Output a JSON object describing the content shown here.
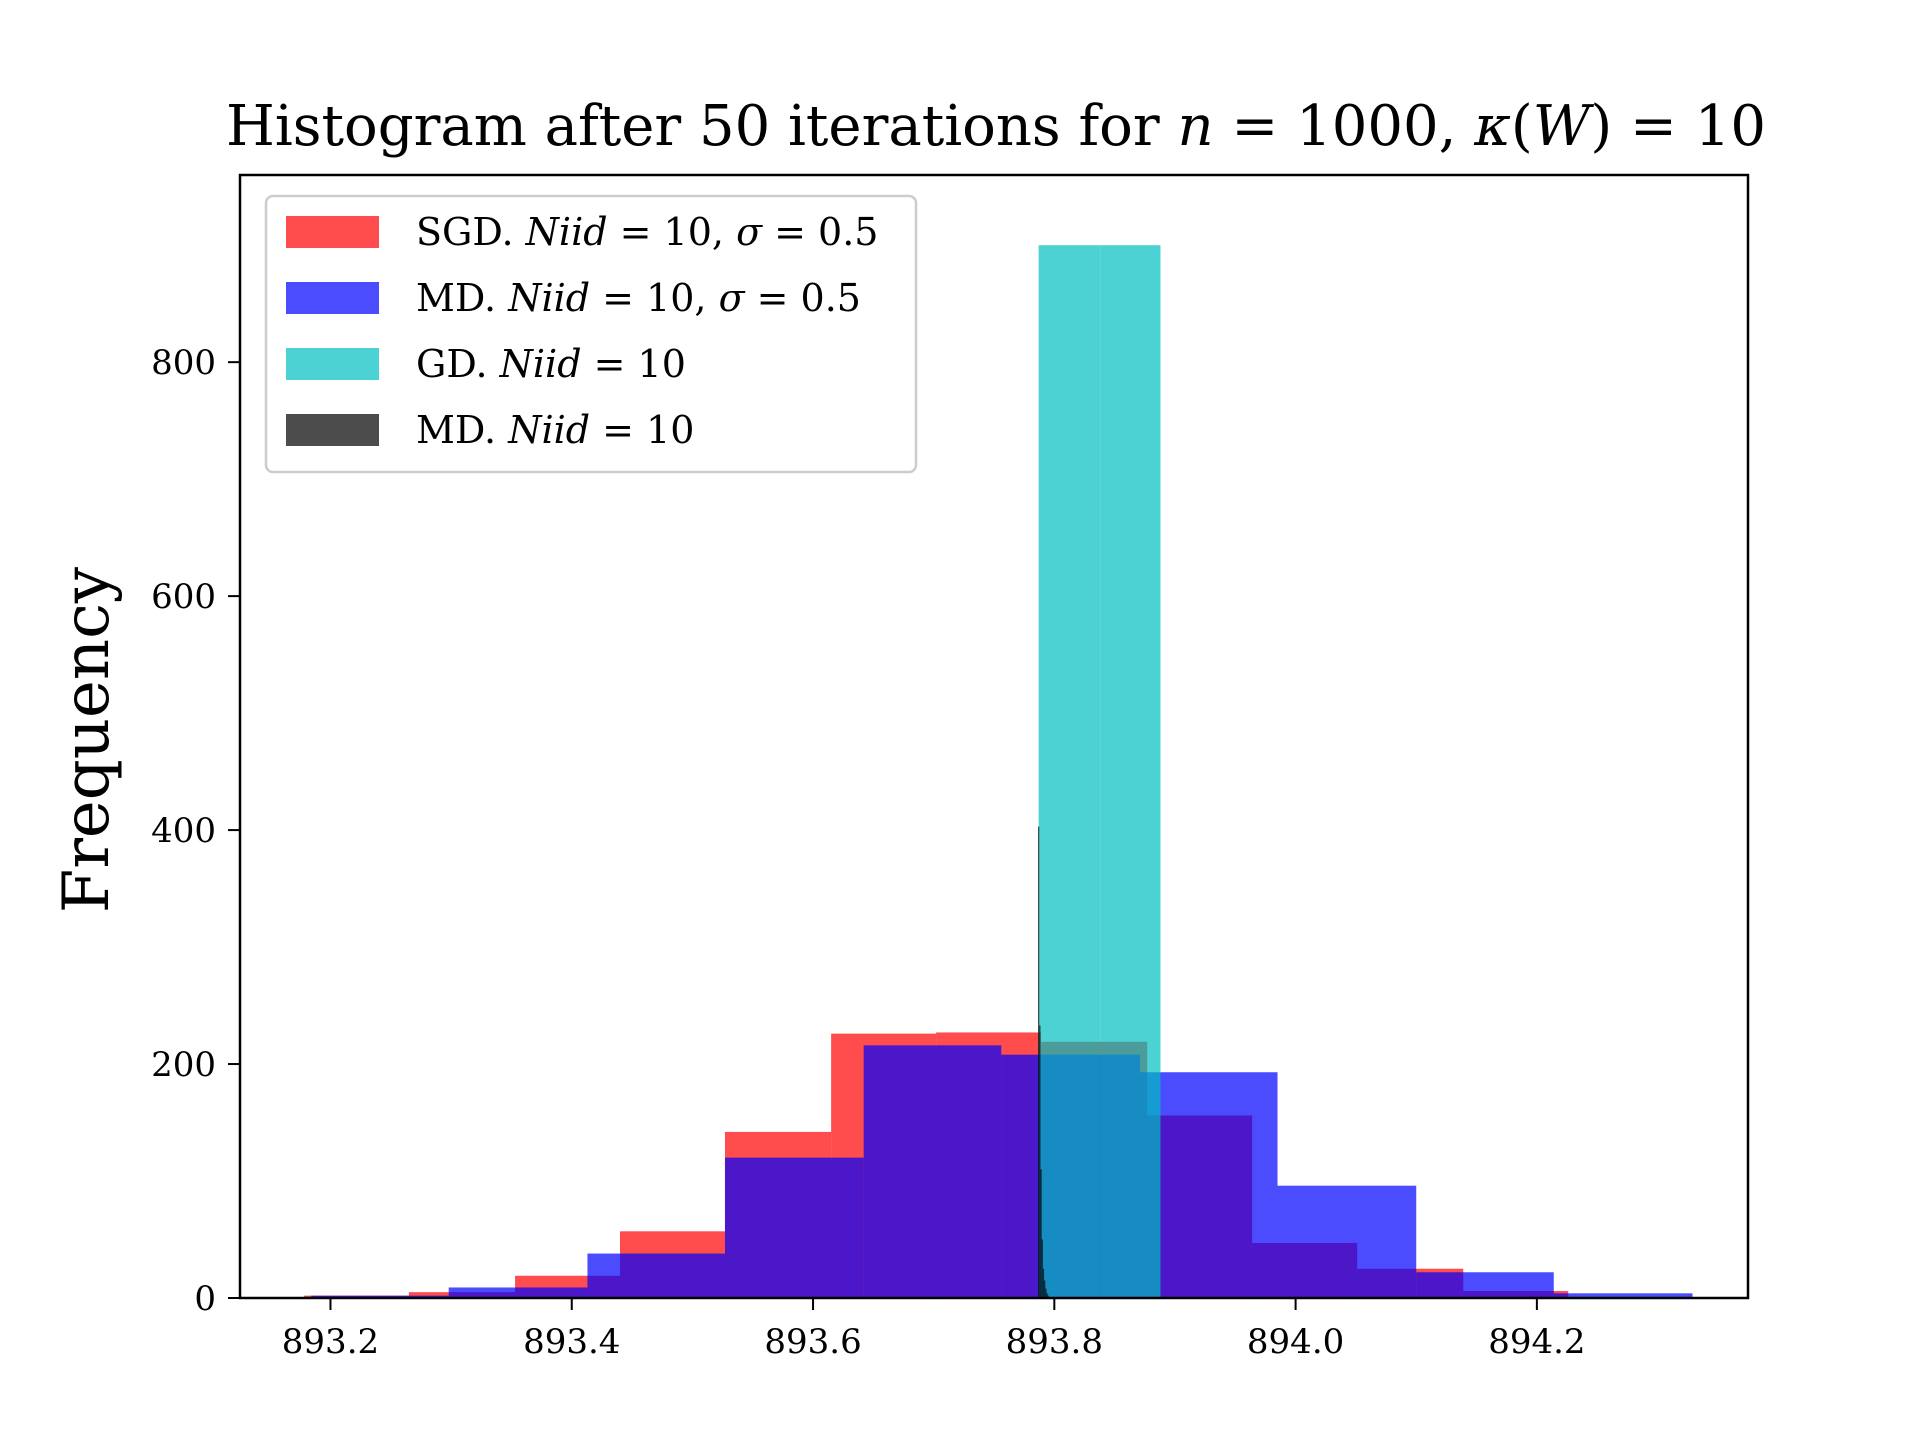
{
  "chart_data": {
    "type": "histogram",
    "title_parts": [
      {
        "text": "Histogram after 50 iterations for ",
        "italic": false
      },
      {
        "text": "n",
        "italic": true
      },
      {
        "text": " = 1000, ",
        "italic": false
      },
      {
        "text": "κ",
        "italic": true
      },
      {
        "text": "(",
        "italic": false
      },
      {
        "text": "W",
        "italic": true
      },
      {
        "text": ") = 10",
        "italic": false
      }
    ],
    "xlabel": "",
    "ylabel": "Frequency",
    "xlim": [
      893.125,
      894.375
    ],
    "ylim": [
      0,
      960
    ],
    "xticks": [
      893.2,
      893.4,
      893.6,
      893.8,
      894.0,
      894.2
    ],
    "xtick_labels": [
      "893.2",
      "893.4",
      "893.6",
      "893.8",
      "894.0",
      "894.2"
    ],
    "yticks": [
      0,
      200,
      400,
      600,
      800
    ],
    "ytick_labels": [
      "0",
      "200",
      "400",
      "600",
      "800"
    ],
    "legend_position": "upper-left",
    "series": [
      {
        "key": "sgd",
        "color": "#ff0000",
        "alpha": 0.7,
        "label_parts": [
          {
            "text": "SGD. ",
            "italic": false
          },
          {
            "text": "Niid",
            "italic": true
          },
          {
            "text": " = 10, ",
            "italic": false
          },
          {
            "text": "σ",
            "italic": true
          },
          {
            "text": " = 0.5",
            "italic": false
          }
        ],
        "bins": [
          {
            "x0": 893.178,
            "x1": 893.265,
            "count": 2
          },
          {
            "x0": 893.265,
            "x1": 893.353,
            "count": 5
          },
          {
            "x0": 893.353,
            "x1": 893.44,
            "count": 19
          },
          {
            "x0": 893.44,
            "x1": 893.527,
            "count": 57
          },
          {
            "x0": 893.527,
            "x1": 893.615,
            "count": 142
          },
          {
            "x0": 893.615,
            "x1": 893.702,
            "count": 226
          },
          {
            "x0": 893.702,
            "x1": 893.789,
            "count": 227
          },
          {
            "x0": 893.789,
            "x1": 893.877,
            "count": 219
          },
          {
            "x0": 893.877,
            "x1": 893.964,
            "count": 156
          },
          {
            "x0": 893.964,
            "x1": 894.051,
            "count": 47
          },
          {
            "x0": 894.051,
            "x1": 894.139,
            "count": 25
          },
          {
            "x0": 894.139,
            "x1": 894.226,
            "count": 6
          }
        ]
      },
      {
        "key": "md_sigma",
        "color": "#0000ff",
        "alpha": 0.7,
        "label_parts": [
          {
            "text": "MD. ",
            "italic": false
          },
          {
            "text": "Niid",
            "italic": true
          },
          {
            "text": " = 10, ",
            "italic": false
          },
          {
            "text": "σ",
            "italic": true
          },
          {
            "text": " = 0.5",
            "italic": false
          }
        ],
        "bins": [
          {
            "x0": 893.184,
            "x1": 893.298,
            "count": 2
          },
          {
            "x0": 893.298,
            "x1": 893.413,
            "count": 9
          },
          {
            "x0": 893.413,
            "x1": 893.527,
            "count": 38
          },
          {
            "x0": 893.527,
            "x1": 893.642,
            "count": 120
          },
          {
            "x0": 893.642,
            "x1": 893.756,
            "count": 216
          },
          {
            "x0": 893.756,
            "x1": 893.871,
            "count": 208
          },
          {
            "x0": 893.871,
            "x1": 893.985,
            "count": 193
          },
          {
            "x0": 893.985,
            "x1": 894.1,
            "count": 96
          },
          {
            "x0": 894.1,
            "x1": 894.214,
            "count": 22
          },
          {
            "x0": 894.214,
            "x1": 894.329,
            "count": 4
          }
        ]
      },
      {
        "key": "gd",
        "color": "#00bfbf",
        "alpha": 0.7,
        "label_parts": [
          {
            "text": "GD. ",
            "italic": false
          },
          {
            "text": "Niid",
            "italic": true
          },
          {
            "text": " = 10",
            "italic": false
          }
        ],
        "bins": [
          {
            "x0": 893.787,
            "x1": 893.838,
            "count": 900
          },
          {
            "x0": 893.838,
            "x1": 893.888,
            "count": 900
          }
        ]
      },
      {
        "key": "md",
        "color": "#000000",
        "alpha": 0.7,
        "label_parts": [
          {
            "text": "MD. ",
            "italic": false
          },
          {
            "text": "Niid",
            "italic": true
          },
          {
            "text": " = 10",
            "italic": false
          }
        ],
        "bins": [
          {
            "x0": 893.7865,
            "x1": 893.7875,
            "count": 403
          },
          {
            "x0": 893.7875,
            "x1": 893.7885,
            "count": 233
          },
          {
            "x0": 893.7885,
            "x1": 893.7895,
            "count": 110
          },
          {
            "x0": 893.7895,
            "x1": 893.7905,
            "count": 50
          },
          {
            "x0": 893.7905,
            "x1": 893.7915,
            "count": 25
          },
          {
            "x0": 893.7915,
            "x1": 893.7925,
            "count": 15
          },
          {
            "x0": 893.7925,
            "x1": 893.7935,
            "count": 8
          },
          {
            "x0": 893.7935,
            "x1": 893.7945,
            "count": 4
          },
          {
            "x0": 893.7945,
            "x1": 893.7955,
            "count": 2
          }
        ]
      }
    ]
  }
}
